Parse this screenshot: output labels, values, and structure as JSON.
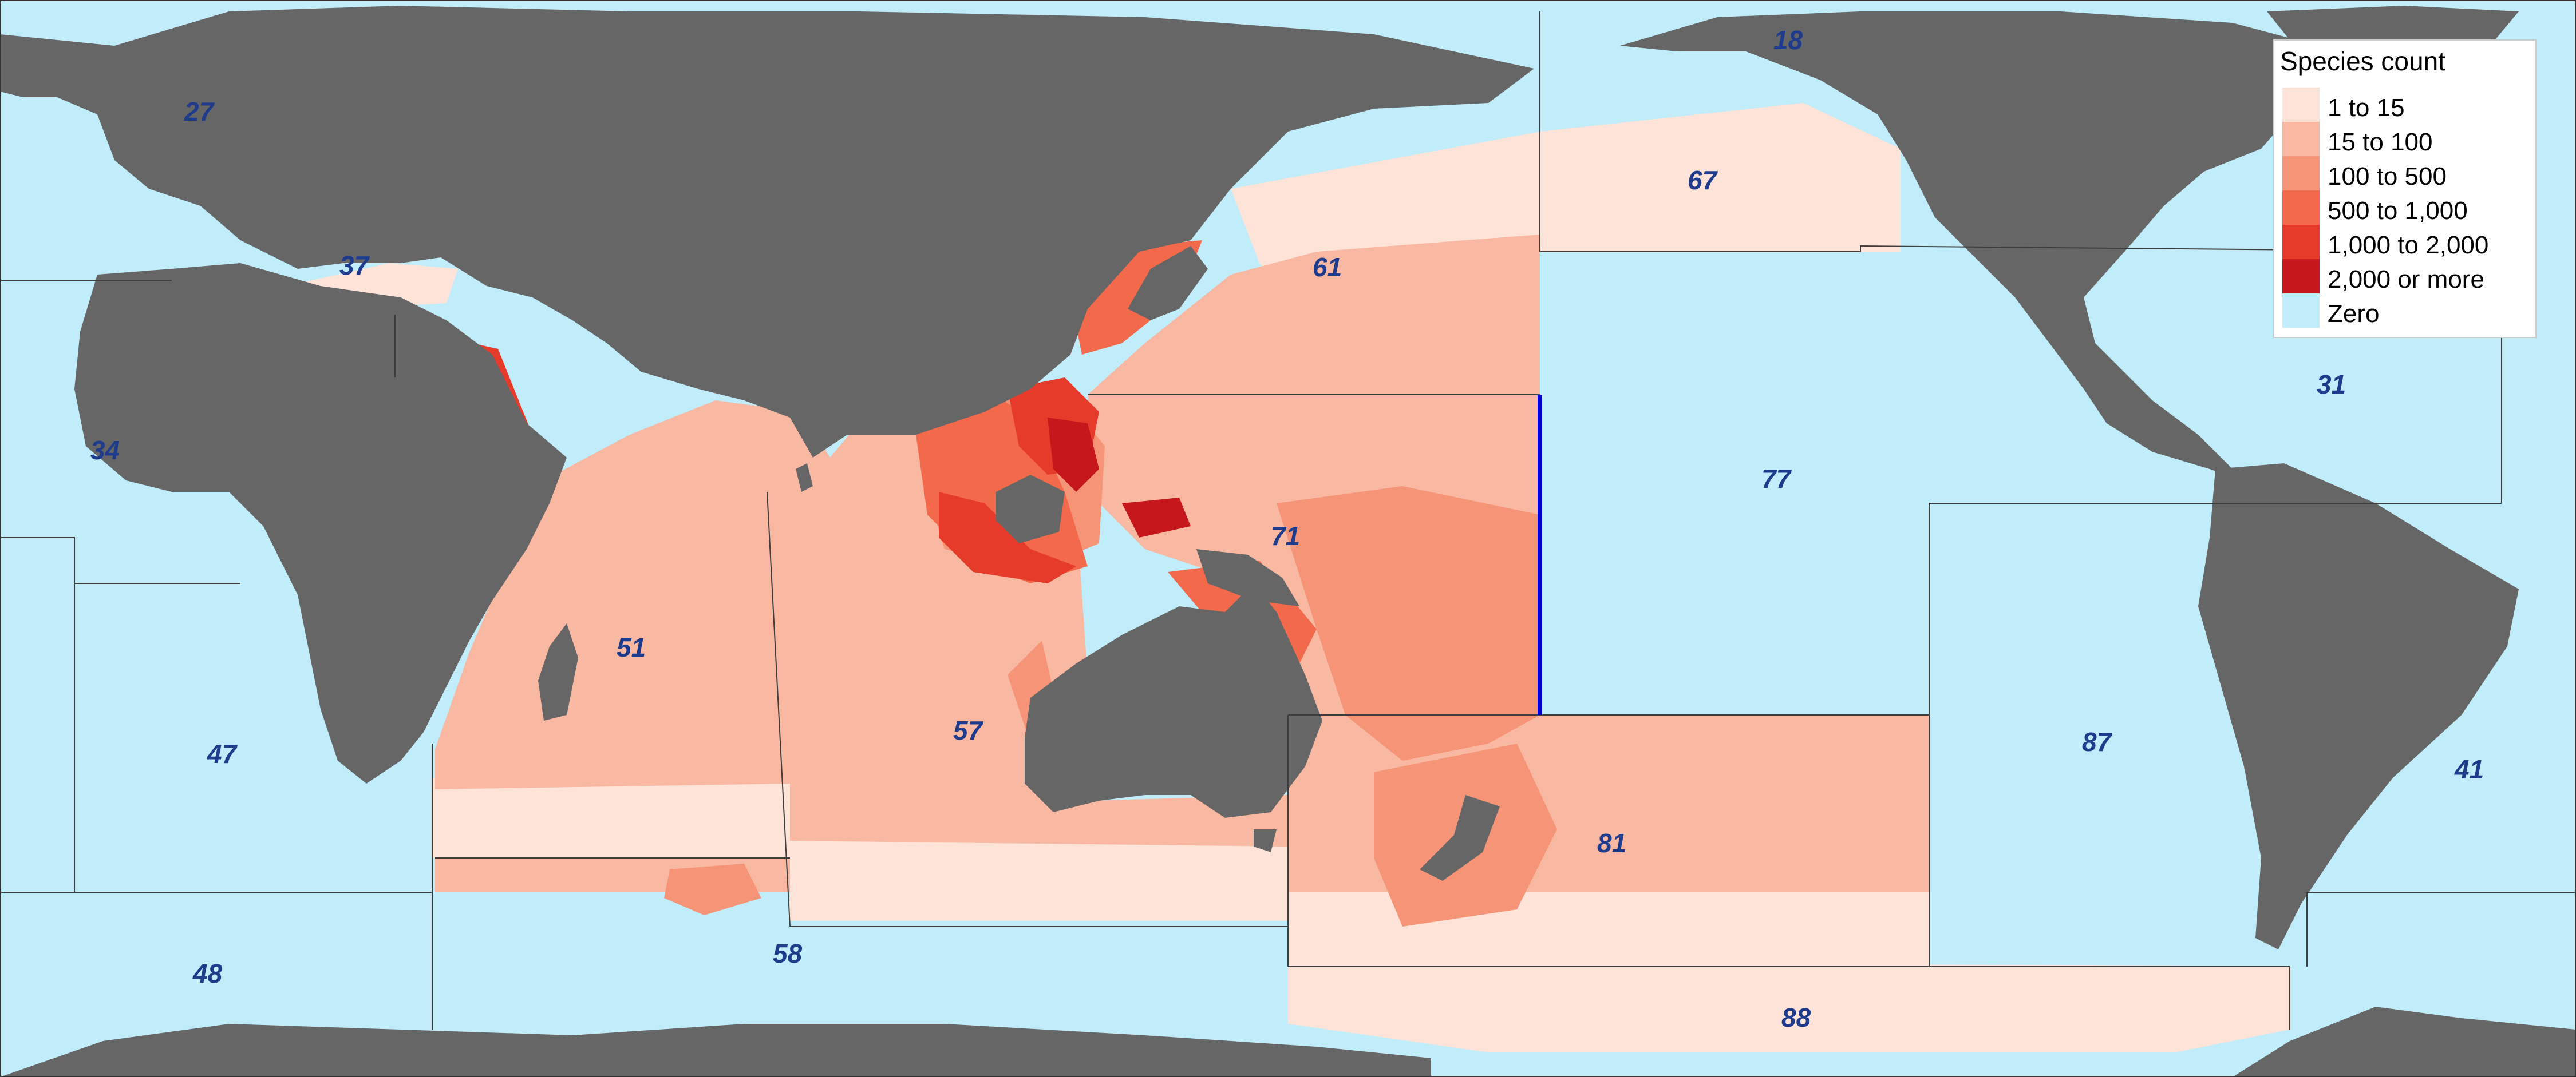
{
  "map": {
    "ocean_color": "#c1ecfa",
    "land_color": "#666666",
    "boundary_line_color": "#3d3d3d",
    "highlight_line_color": "#0000cc"
  },
  "legend": {
    "title": "Species count",
    "items": [
      {
        "label": "1 to 15",
        "color": "#fde3d8"
      },
      {
        "label": "15 to 100",
        "color": "#f8b8a2"
      },
      {
        "label": "100 to 500",
        "color": "#f59476"
      },
      {
        "label": "500 to 1,000",
        "color": "#f26a4b"
      },
      {
        "label": "1,000 to 2,000",
        "color": "#e63a2a"
      },
      {
        "label": "2,000 or more",
        "color": "#c5171c"
      },
      {
        "label": "Zero",
        "color": "#c1ecfa"
      }
    ]
  },
  "fishing_areas": [
    {
      "code": "18"
    },
    {
      "code": "27"
    },
    {
      "code": "37"
    },
    {
      "code": "34"
    },
    {
      "code": "47"
    },
    {
      "code": "48"
    },
    {
      "code": "51"
    },
    {
      "code": "57"
    },
    {
      "code": "58"
    },
    {
      "code": "61"
    },
    {
      "code": "67"
    },
    {
      "code": "71"
    },
    {
      "code": "77"
    },
    {
      "code": "81"
    },
    {
      "code": "87"
    },
    {
      "code": "41"
    },
    {
      "code": "31"
    },
    {
      "code": "88"
    }
  ]
}
